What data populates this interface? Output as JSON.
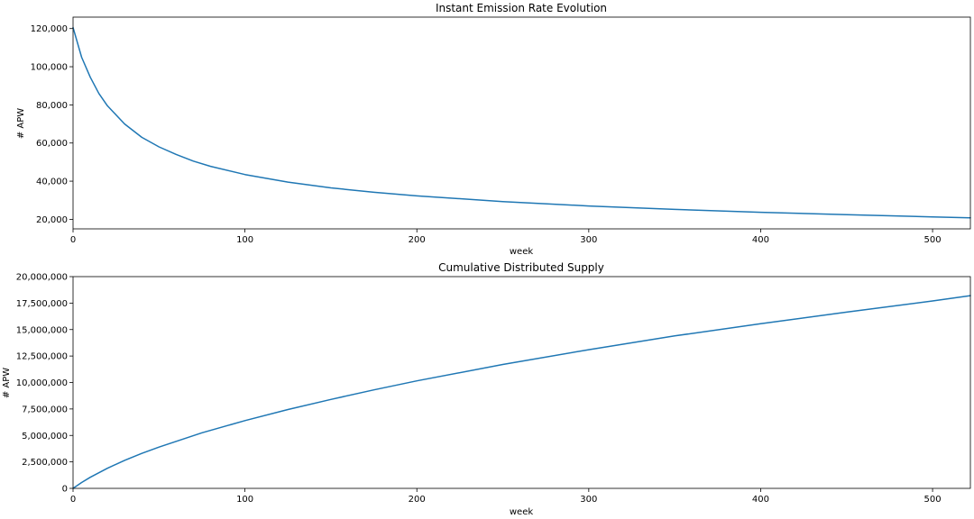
{
  "chart_data": [
    {
      "type": "line",
      "title": "Instant Emission Rate Evolution",
      "xlabel": "week",
      "ylabel": "# APW",
      "xlim": [
        0,
        522
      ],
      "ylim": [
        15000,
        126000
      ],
      "xticks": [
        0,
        100,
        200,
        300,
        400,
        500
      ],
      "xtick_labels": [
        "0",
        "100",
        "200",
        "300",
        "400",
        "500"
      ],
      "yticks": [
        20000,
        40000,
        60000,
        80000,
        100000,
        120000
      ],
      "ytick_labels": [
        "20,000",
        "40,000",
        "60,000",
        "80,000",
        "100,000",
        "120,000"
      ],
      "grid": false,
      "color": "#1f77b4",
      "series": [
        {
          "x": [
            0,
            5,
            10,
            15,
            20,
            30,
            40,
            50,
            60,
            70,
            80,
            100,
            125,
            150,
            175,
            200,
            250,
            300,
            350,
            400,
            450,
            500,
            522
          ],
          "values": [
            120500,
            105000,
            94500,
            86000,
            79500,
            70000,
            63000,
            58000,
            54000,
            50500,
            47800,
            43500,
            39500,
            36500,
            34200,
            32300,
            29300,
            27000,
            25200,
            23700,
            22400,
            21300,
            20800
          ]
        }
      ]
    },
    {
      "type": "line",
      "title": "Cumulative Distributed Supply",
      "xlabel": "week",
      "ylabel": "# APW",
      "xlim": [
        0,
        522
      ],
      "ylim": [
        0,
        20000000
      ],
      "xticks": [
        0,
        100,
        200,
        300,
        400,
        500
      ],
      "xtick_labels": [
        "0",
        "100",
        "200",
        "300",
        "400",
        "500"
      ],
      "yticks": [
        0,
        2500000,
        5000000,
        7500000,
        10000000,
        12500000,
        15000000,
        17500000,
        20000000
      ],
      "ytick_labels": [
        "0",
        "2,500,000",
        "5,000,000",
        "7,500,000",
        "10,000,000",
        "12,500,000",
        "15,000,000",
        "17,500,000",
        "20,000,000"
      ],
      "grid": false,
      "color": "#1f77b4",
      "series": [
        {
          "x": [
            0,
            5,
            10,
            20,
            30,
            40,
            50,
            75,
            100,
            125,
            150,
            175,
            200,
            250,
            300,
            350,
            400,
            450,
            500,
            522
          ],
          "values": [
            0,
            550000,
            1050000,
            1900000,
            2650000,
            3300000,
            3900000,
            5250000,
            6400000,
            7450000,
            8400000,
            9300000,
            10150000,
            11700000,
            13100000,
            14400000,
            15550000,
            16650000,
            17700000,
            18200000
          ]
        }
      ]
    }
  ]
}
